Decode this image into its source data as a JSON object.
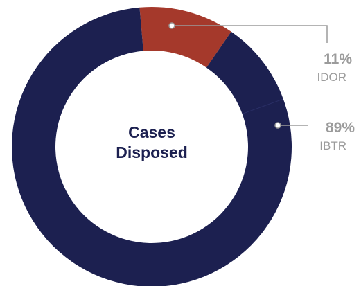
{
  "chart_data": {
    "type": "pie",
    "title": "Cases Disposed",
    "title_lines": [
      "Cases",
      "Disposed"
    ],
    "donut": true,
    "slices": [
      {
        "name": "IDOR",
        "value": 11,
        "label": "11%",
        "color": "#a5392b"
      },
      {
        "name": "IBTR",
        "value": 89,
        "label": "89%",
        "color": "#1c2050"
      }
    ],
    "leader_line_color": "#9b9b9b",
    "label_color": "#9b9b9b"
  }
}
